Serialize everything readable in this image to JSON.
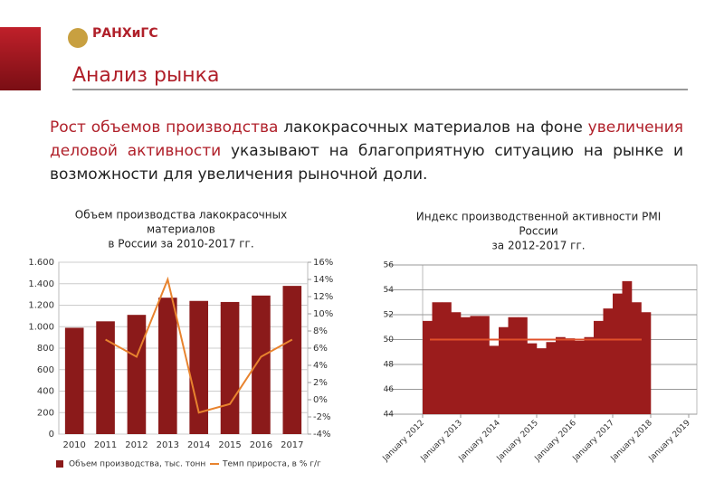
{
  "header": {
    "logo": "РАНХиГС",
    "title": "Анализ рынка"
  },
  "paragraph": {
    "part1": "Рост объемов производства",
    "part2": " лакокрасочных материалов на фоне ",
    "part3": "увеличения деловой активности",
    "part4": " указывают на благоприятную ситуацию на рынке и возможности для увеличения рыночной доли."
  },
  "chart_data": [
    {
      "type": "bar_line",
      "title": [
        "Объем производства лакокрасочных",
        "материалов",
        "в России за 2010-2017 гг."
      ],
      "categories": [
        "2010",
        "2011",
        "2012",
        "2013",
        "2014",
        "2015",
        "2016",
        "2017"
      ],
      "series": [
        {
          "name": "Объем производства, тыс. тонн",
          "color": "#8b1a1a",
          "values": [
            990,
            1050,
            1110,
            1270,
            1240,
            1230,
            1290,
            1380
          ]
        },
        {
          "name": "Темп прироста, в % г/г",
          "color": "#e8832e",
          "axis": "y2",
          "values": [
            null,
            7,
            5,
            14,
            -1.5,
            -0.5,
            5,
            7
          ]
        }
      ],
      "ylim": [
        0,
        1600
      ],
      "yticks": [
        0,
        200,
        400,
        600,
        800,
        {
          "value": 1000,
          "label": "1.000"
        },
        {
          "value": 1200,
          "label": "1.200"
        },
        {
          "value": 1400,
          "label": "1.400"
        },
        {
          "value": 1600,
          "label": "1.600"
        }
      ],
      "y2lim": [
        -4,
        16
      ],
      "y2ticks": [
        {
          "value": -4,
          "label": "-4%"
        },
        {
          "value": -2,
          "label": "-2%"
        },
        {
          "value": 0,
          "label": "0%"
        },
        {
          "value": 2,
          "label": "2%"
        },
        {
          "value": 4,
          "label": "4%"
        },
        {
          "value": 6,
          "label": "6%"
        },
        {
          "value": 8,
          "label": "8%"
        },
        {
          "value": 10,
          "label": "10%"
        },
        {
          "value": 12,
          "label": "12%"
        },
        {
          "value": 14,
          "label": "14%"
        },
        {
          "value": 16,
          "label": "16%"
        }
      ],
      "grid": true,
      "legend": "bottom"
    },
    {
      "type": "step_area",
      "title": [
        "Индекс производственной активности PMI",
        "России",
        "за 2012-2017 гг."
      ],
      "categories": [
        "January 2012",
        null,
        null,
        null,
        "January 2013",
        null,
        null,
        null,
        "January 2014",
        null,
        null,
        null,
        "January 2015",
        null,
        null,
        null,
        "January 2016",
        null,
        null,
        null,
        "January 2017",
        null,
        null,
        null,
        "January 2018",
        null,
        null,
        null,
        "January 2019"
      ],
      "color": "#9b1c1c",
      "values": [
        51.5,
        53,
        53,
        52.2,
        51.8,
        51.9,
        51.9,
        49.5,
        51,
        51.8,
        51.8,
        49.7,
        49.3,
        49.8,
        50.2,
        50.1,
        49.9,
        50.2,
        51.5,
        52.5,
        53.7,
        54.7,
        53,
        52.2,
        null,
        null,
        null,
        null,
        null
      ],
      "reference_line": {
        "value": 50,
        "color": "#e0502a"
      },
      "ylim": [
        44,
        56
      ],
      "yticks": [
        44,
        46,
        48,
        50,
        52,
        54,
        56
      ],
      "grid": true
    }
  ]
}
